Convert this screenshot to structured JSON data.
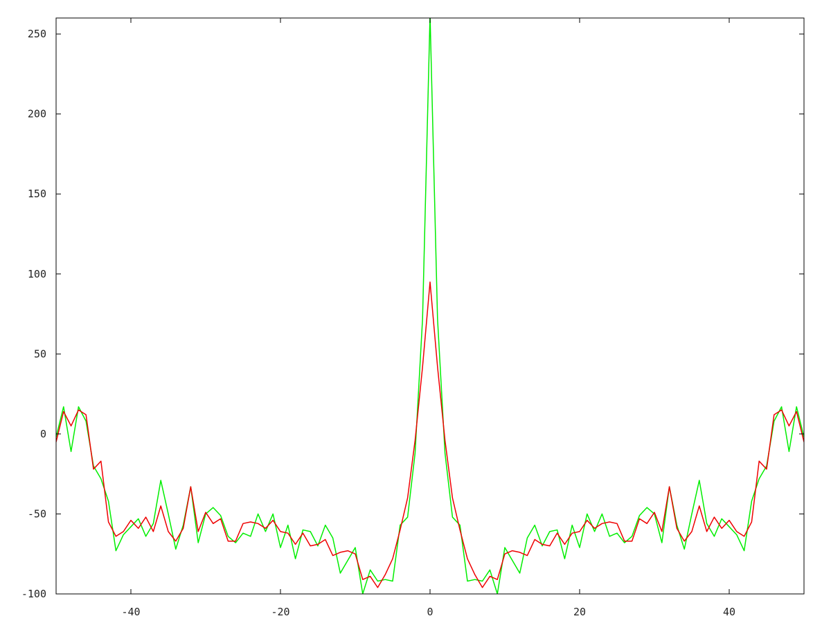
{
  "chart_data": {
    "type": "line",
    "title": "",
    "xlabel": "",
    "ylabel": "",
    "xlim": [
      -50,
      50
    ],
    "ylim": [
      -100,
      260
    ],
    "x_ticks": [
      -40,
      -20,
      0,
      20,
      40
    ],
    "y_ticks": [
      -100,
      -50,
      0,
      50,
      100,
      150,
      200,
      250
    ],
    "grid": false,
    "legend": "none",
    "x": [
      -50,
      -49,
      -48,
      -47,
      -46,
      -45,
      -44,
      -43,
      -42,
      -41,
      -40,
      -39,
      -38,
      -37,
      -36,
      -35,
      -34,
      -33,
      -32,
      -31,
      -30,
      -29,
      -28,
      -27,
      -26,
      -25,
      -24,
      -23,
      -22,
      -21,
      -20,
      -19,
      -18,
      -17,
      -16,
      -15,
      -14,
      -13,
      -12,
      -11,
      -10,
      -9,
      -8,
      -7,
      -6,
      -5,
      -4,
      -3,
      -2,
      -1,
      0,
      1,
      2,
      3,
      4,
      5,
      6,
      7,
      8,
      9,
      10,
      11,
      12,
      13,
      14,
      15,
      16,
      17,
      18,
      19,
      20,
      21,
      22,
      23,
      24,
      25,
      26,
      27,
      28,
      29,
      30,
      31,
      32,
      33,
      34,
      35,
      36,
      37,
      38,
      39,
      40,
      41,
      42,
      43,
      44,
      45,
      46,
      47,
      48,
      49,
      50
    ],
    "series": [
      {
        "color": "#00ee00",
        "values": [
          -2,
          17,
          -11,
          17,
          8,
          -20,
          -28,
          -42,
          -73,
          -63,
          -58,
          -53,
          -64,
          -56,
          -29,
          -50,
          -72,
          -57,
          -33,
          -68,
          -50,
          -46,
          -51,
          -64,
          -68,
          -62,
          -64,
          -50,
          -61,
          -50,
          -71,
          -57,
          -78,
          -60,
          -61,
          -70,
          -57,
          -65,
          -87,
          -79,
          -71,
          -100,
          -85,
          -92,
          -91,
          -92,
          -57,
          -52,
          -12,
          72,
          262,
          72,
          -12,
          -52,
          -57,
          -92,
          -91,
          -92,
          -85,
          -100,
          -71,
          -79,
          -87,
          -65,
          -57,
          -70,
          -61,
          -60,
          -78,
          -57,
          -71,
          -50,
          -61,
          -50,
          -64,
          -62,
          -68,
          -64,
          -51,
          -46,
          -50,
          -68,
          -33,
          -57,
          -72,
          -50,
          -29,
          -56,
          -64,
          -53,
          -58,
          -63,
          -73,
          -42,
          -28,
          -20,
          8,
          17,
          -11,
          17,
          -2
        ]
      },
      {
        "color": "#ee0000",
        "values": [
          -5,
          14,
          5,
          15,
          12,
          -22,
          -17,
          -55,
          -64,
          -61,
          -54,
          -59,
          -52,
          -61,
          -45,
          -61,
          -67,
          -59,
          -33,
          -61,
          -49,
          -56,
          -53,
          -67,
          -67,
          -56,
          -55,
          -56,
          -59,
          -54,
          -61,
          -62,
          -69,
          -62,
          -70,
          -69,
          -66,
          -76,
          -74,
          -73,
          -75,
          -91,
          -89,
          -96,
          -88,
          -78,
          -60,
          -40,
          -4,
          42,
          95,
          42,
          -4,
          -40,
          -60,
          -78,
          -88,
          -96,
          -89,
          -91,
          -75,
          -73,
          -74,
          -76,
          -66,
          -69,
          -70,
          -62,
          -69,
          -62,
          -61,
          -54,
          -59,
          -56,
          -55,
          -56,
          -67,
          -67,
          -53,
          -56,
          -49,
          -61,
          -33,
          -59,
          -67,
          -61,
          -45,
          -61,
          -52,
          -59,
          -54,
          -61,
          -64,
          -55,
          -17,
          -22,
          12,
          15,
          5,
          14,
          -5
        ]
      }
    ]
  }
}
